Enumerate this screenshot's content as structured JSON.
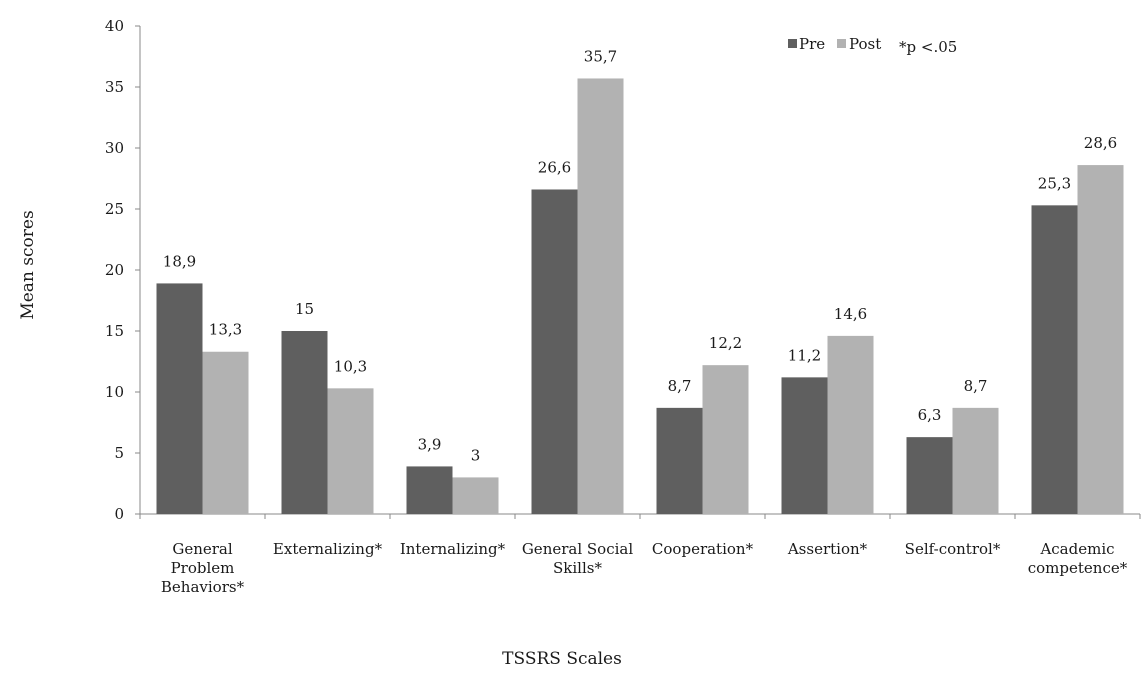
{
  "chart_data": {
    "type": "bar",
    "title": "",
    "xlabel": "TSSRS Scales",
    "ylabel": "Mean scores",
    "ylim": [
      0,
      40
    ],
    "yticks": [
      0,
      5,
      10,
      15,
      20,
      25,
      30,
      35,
      40
    ],
    "grid": false,
    "legend_position": "top-right",
    "categories": [
      [
        "General",
        "Problem",
        "Behaviors*"
      ],
      [
        "Externalizing*"
      ],
      [
        "Internalizing*"
      ],
      [
        "General Social",
        "Skills*"
      ],
      [
        "Cooperation*"
      ],
      [
        "Assertion*"
      ],
      [
        "Self-control*"
      ],
      [
        "Academic",
        "competence*"
      ]
    ],
    "series": [
      {
        "name": "Pre",
        "color": "#5f5f5f",
        "values": [
          18.9,
          15,
          3.9,
          26.6,
          8.7,
          11.2,
          6.3,
          25.3
        ],
        "data_labels": [
          "18,9",
          "15",
          "3,9",
          "26,6",
          "8,7",
          "11,2",
          "6,3",
          "25,3"
        ]
      },
      {
        "name": "Post",
        "color": "#b2b2b2",
        "values": [
          13.3,
          10.3,
          3,
          35.7,
          12.2,
          14.6,
          8.7,
          28.6
        ],
        "data_labels": [
          "13,3",
          "10,3",
          "3",
          "35,7",
          "12,2",
          "14,6",
          "8,7",
          "28,6"
        ]
      }
    ],
    "annotation": "*p <.05"
  }
}
